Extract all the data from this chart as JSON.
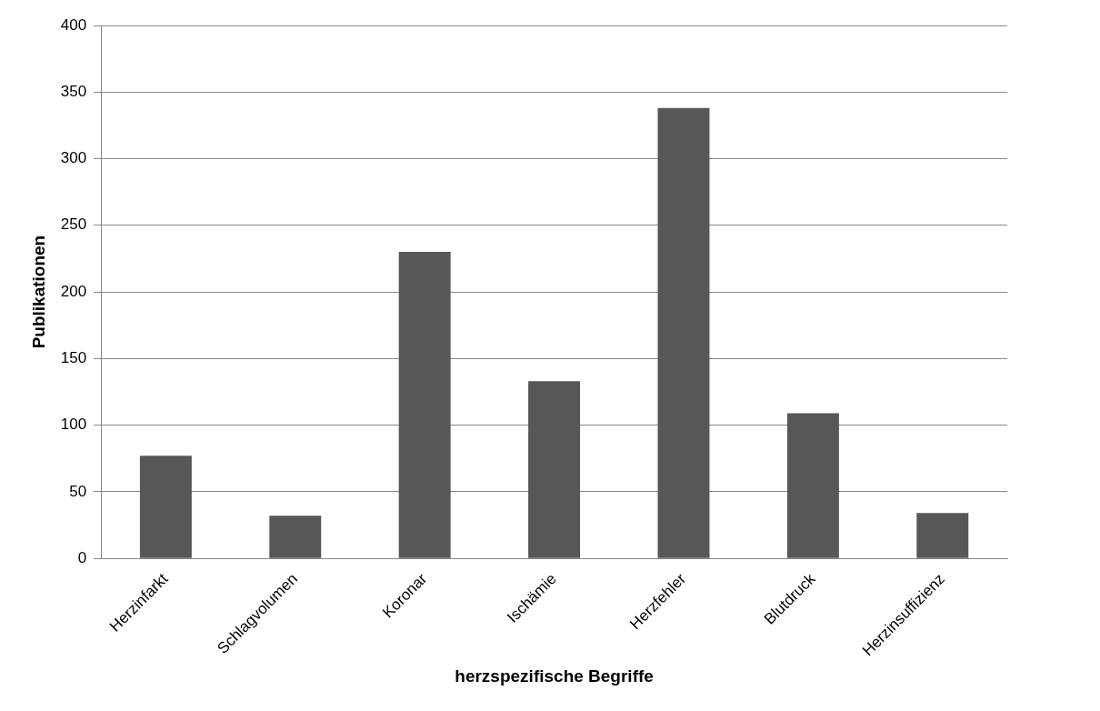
{
  "chart_data": {
    "type": "bar",
    "xlabel": "herzspezifische Begriffe",
    "ylabel": "Publikationen",
    "categories": [
      "Herzinfarkt",
      "Schlagvolumen",
      "Koronar",
      "Ischämie",
      "Herzfehler",
      "Blutdruck",
      "Herzinsuffizienz"
    ],
    "values": [
      77,
      32,
      230,
      133,
      338,
      109,
      34
    ],
    "color": "#575757",
    "ylim": [
      0,
      400
    ],
    "yticks": [
      0,
      50,
      100,
      150,
      200,
      250,
      300,
      350,
      400
    ],
    "grid": "y",
    "legend": false
  }
}
